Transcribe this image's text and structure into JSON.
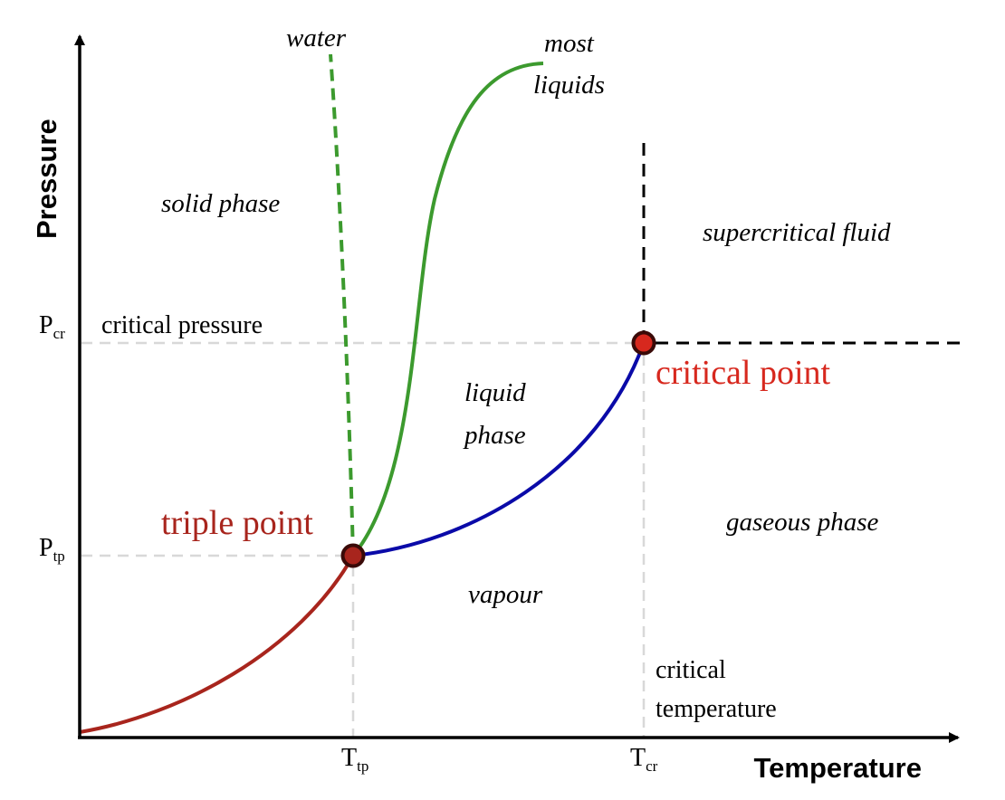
{
  "axes": {
    "x_label": "Temperature",
    "y_label": "Pressure"
  },
  "ticks": {
    "p_cr": {
      "main": "P",
      "sub": "cr",
      "desc": "critical pressure"
    },
    "p_tp": {
      "main": "P",
      "sub": "tp"
    },
    "t_tp": {
      "main": "T",
      "sub": "tp"
    },
    "t_cr": {
      "main": "T",
      "sub": "cr",
      "desc_line1": "critical",
      "desc_line2": "temperature"
    }
  },
  "regions": {
    "solid": "solid phase",
    "liquid_line1": "liquid",
    "liquid_line2": "phase",
    "vapour": "vapour",
    "gaseous": "gaseous phase",
    "supercritical": "supercritical fluid"
  },
  "curves": {
    "water": "water",
    "most_line1": "most",
    "most_line2": "liquids"
  },
  "points": {
    "triple": "triple point",
    "critical": "critical point"
  },
  "colors": {
    "sublimation": "#a8251d",
    "vaporization": "#0a0aa8",
    "melting": "#3c9a2e",
    "point_fill": "#d7281e",
    "triple_label": "#a8251d",
    "critical_label": "#d7281e",
    "guide": "#d8d8d8",
    "axis": "#000000"
  }
}
